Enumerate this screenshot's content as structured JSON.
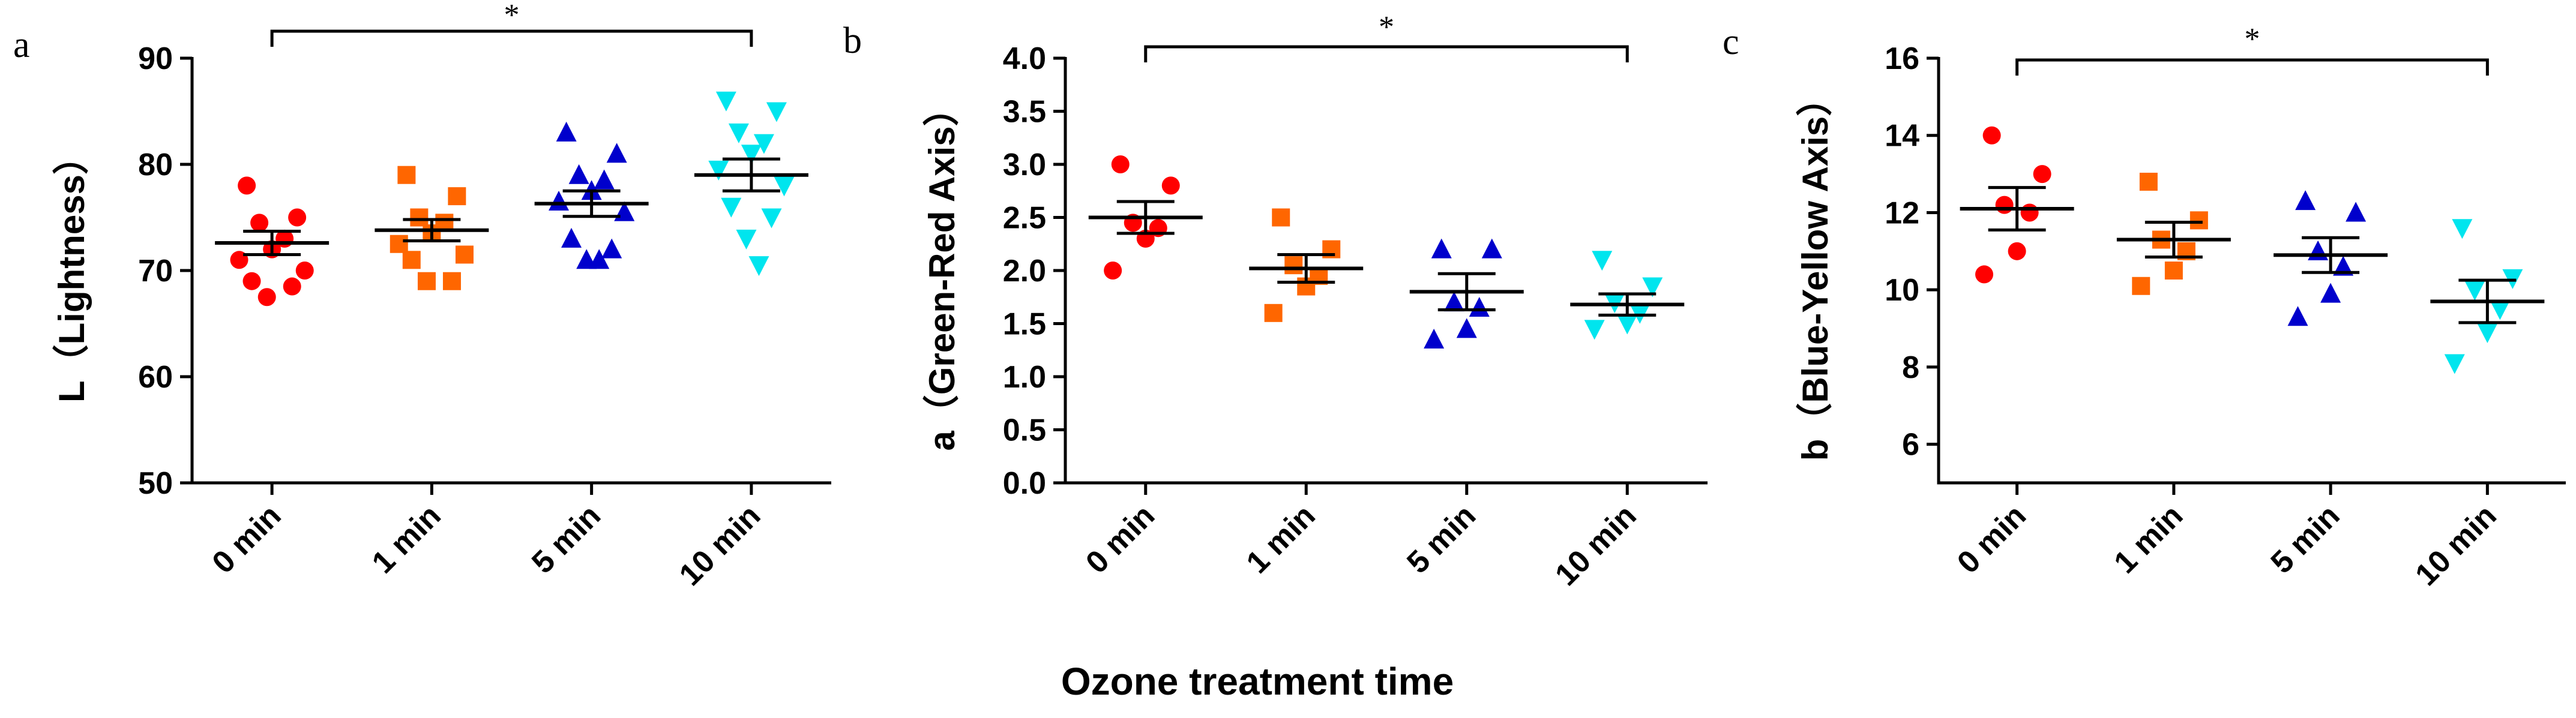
{
  "xlabel": "Ozone treatment time",
  "categories": [
    "0 min",
    "1 min",
    "5 min",
    "10 min"
  ],
  "colors": [
    "#ff0000",
    "#ff6600",
    "#0000cc",
    "#00e5ee"
  ],
  "markers": [
    "circle",
    "square",
    "triangle-up",
    "triangle-down"
  ],
  "chart_data": [
    {
      "type": "scatter",
      "panel": "a",
      "title": "",
      "xlabel": "Ozone treatment time",
      "ylabel": "L（Lightness）",
      "categories": [
        "0 min",
        "1 min",
        "5 min",
        "10 min"
      ],
      "ylim": [
        50,
        90
      ],
      "yticks": [
        50,
        60,
        70,
        80,
        90
      ],
      "ytick_labels": [
        "50",
        "60",
        "70",
        "80",
        "90"
      ],
      "series": [
        {
          "name": "0 min",
          "points": [
            78,
            75,
            74.5,
            73,
            72,
            71,
            70,
            69,
            68.5,
            67.5
          ],
          "mean": 72.6,
          "sem": 1.1
        },
        {
          "name": "1 min",
          "points": [
            79,
            77,
            75,
            74.5,
            73.5,
            72.5,
            71.5,
            71,
            69,
            69
          ],
          "mean": 73.8,
          "sem": 1.0
        },
        {
          "name": "5 min",
          "points": [
            83,
            81,
            79,
            78.5,
            77.5,
            76.5,
            75.5,
            73,
            72,
            71,
            71
          ],
          "mean": 76.3,
          "sem": 1.2
        },
        {
          "name": "10 min",
          "points": [
            86,
            85,
            83,
            82,
            81,
            79.5,
            78,
            76,
            75,
            73,
            70.5
          ],
          "mean": 79.0,
          "sem": 1.5
        }
      ],
      "significance": {
        "from": "0 min",
        "to": "10 min",
        "label": "*"
      }
    },
    {
      "type": "scatter",
      "panel": "b",
      "title": "",
      "xlabel": "Ozone treatment time",
      "ylabel": "a（Green-Red Axis）",
      "categories": [
        "0 min",
        "1 min",
        "5 min",
        "10 min"
      ],
      "ylim": [
        0,
        4
      ],
      "yticks": [
        0,
        0.5,
        1,
        1.5,
        2,
        2.5,
        3,
        3.5,
        4
      ],
      "ytick_labels": [
        "0.0",
        "0.5",
        "1.0",
        "1.5",
        "2.0",
        "2.5",
        "3.0",
        "3.5",
        "4.0"
      ],
      "series": [
        {
          "name": "0 min",
          "points": [
            3.0,
            2.8,
            2.45,
            2.4,
            2.3,
            2.0
          ],
          "mean": 2.5,
          "sem": 0.15
        },
        {
          "name": "1 min",
          "points": [
            2.5,
            2.2,
            2.05,
            1.95,
            1.85,
            1.6
          ],
          "mean": 2.02,
          "sem": 0.13
        },
        {
          "name": "5 min",
          "points": [
            2.2,
            2.2,
            1.7,
            1.65,
            1.45,
            1.35
          ],
          "mean": 1.8,
          "sem": 0.17
        },
        {
          "name": "10 min",
          "points": [
            2.1,
            1.85,
            1.7,
            1.6,
            1.5,
            1.45
          ],
          "mean": 1.68,
          "sem": 0.1
        }
      ],
      "significance": {
        "from": "0 min",
        "to": "10 min",
        "label": "*"
      }
    },
    {
      "type": "scatter",
      "panel": "c",
      "title": "",
      "xlabel": "Ozone treatment time",
      "ylabel": "b（Blue-Yellow Axis）",
      "categories": [
        "0 min",
        "1 min",
        "5 min",
        "10 min"
      ],
      "ylim": [
        5,
        16
      ],
      "yticks": [
        6,
        8,
        10,
        12,
        14,
        16
      ],
      "ytick_labels": [
        "6",
        "8",
        "10",
        "12",
        "14",
        "16"
      ],
      "series": [
        {
          "name": "0 min",
          "points": [
            14.0,
            13.0,
            12.2,
            12.0,
            11.0,
            10.4
          ],
          "mean": 12.1,
          "sem": 0.55
        },
        {
          "name": "1 min",
          "points": [
            12.8,
            11.8,
            11.3,
            11.0,
            10.5,
            10.1
          ],
          "mean": 11.3,
          "sem": 0.45
        },
        {
          "name": "5 min",
          "points": [
            12.3,
            12.0,
            11.0,
            10.6,
            9.9,
            9.3
          ],
          "mean": 10.9,
          "sem": 0.45
        },
        {
          "name": "10 min",
          "points": [
            11.6,
            10.3,
            10.0,
            9.5,
            8.9,
            8.1
          ],
          "mean": 9.7,
          "sem": 0.55
        }
      ],
      "significance": {
        "from": "0 min",
        "to": "10 min",
        "label": "*"
      }
    }
  ]
}
